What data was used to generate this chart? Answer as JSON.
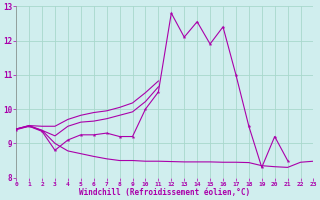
{
  "xlabel": "Windchill (Refroidissement éolien,°C)",
  "background_color": "#d0eeee",
  "grid_color": "#a8d8cc",
  "line_color": "#aa00aa",
  "xlim": [
    0,
    23
  ],
  "ylim": [
    8,
    13
  ],
  "xticks": [
    0,
    1,
    2,
    3,
    4,
    5,
    6,
    7,
    8,
    9,
    10,
    11,
    12,
    13,
    14,
    15,
    16,
    17,
    18,
    19,
    20,
    21,
    22,
    23
  ],
  "yticks": [
    8,
    9,
    10,
    11,
    12,
    13
  ],
  "line1_y": [
    9.4,
    9.5,
    9.35,
    8.8,
    9.1,
    9.25,
    9.25,
    9.3,
    9.2,
    9.2,
    10.0,
    10.5,
    12.8,
    12.1,
    12.55,
    11.9,
    12.4,
    11.0,
    9.5,
    8.3,
    9.2,
    8.5,
    null,
    null
  ],
  "line2_y": [
    9.42,
    9.52,
    9.38,
    9.22,
    9.5,
    9.62,
    9.65,
    9.72,
    9.82,
    9.92,
    10.22,
    10.65,
    null,
    null,
    null,
    null,
    null,
    null,
    null,
    null,
    null,
    null,
    null,
    null
  ],
  "line3_y": [
    9.42,
    9.5,
    9.38,
    9.0,
    8.78,
    8.7,
    8.62,
    8.55,
    8.5,
    8.5,
    8.48,
    8.48,
    8.47,
    8.46,
    8.46,
    8.46,
    8.45,
    8.45,
    8.44,
    8.35,
    8.32,
    8.3,
    8.45,
    8.48
  ],
  "line4_y": [
    9.42,
    9.52,
    9.5,
    9.5,
    9.7,
    9.82,
    9.9,
    9.95,
    10.05,
    10.18,
    10.48,
    10.82,
    null,
    null,
    null,
    null,
    null,
    null,
    null,
    null,
    null,
    null,
    null,
    null
  ]
}
